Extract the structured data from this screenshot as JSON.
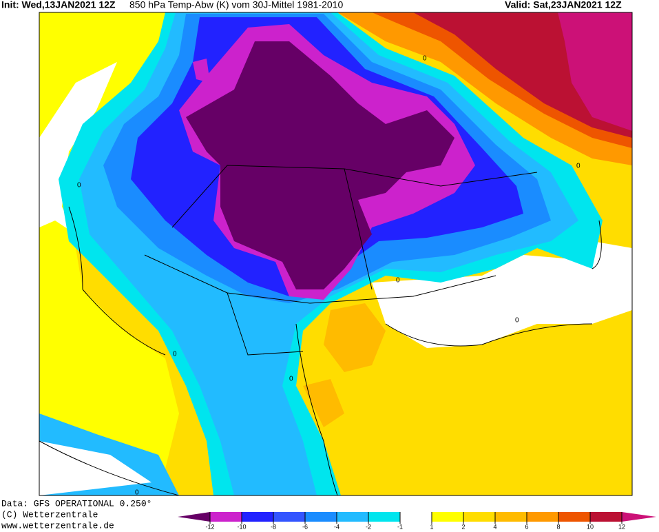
{
  "header": {
    "init": "Init: Wed,13JAN2021 12Z",
    "title": "850 hPa Temp-Abw (K) vom 30J-Mittel 1981-2010",
    "valid": "Valid: Sat,23JAN2021 12Z"
  },
  "map": {
    "contour_label": "0"
  },
  "footer": {
    "source": "Data: GFS OPERATIONAL 0.250°",
    "copyright": "(C) Wetterzentrale",
    "url": "www.wetterzentrale.de"
  },
  "colorbar": {
    "ticks": [
      -12,
      -10,
      -8,
      -6,
      -4,
      -2,
      -1,
      1,
      2,
      4,
      6,
      8,
      10,
      12
    ],
    "colors": [
      "#660066",
      "#cc22cc",
      "#2222ff",
      "#3355ff",
      "#1a8cff",
      "#22bbff",
      "#00e5ee",
      "#ffffff",
      "#ffff00",
      "#ffdd00",
      "#ffbb00",
      "#ff9900",
      "#ee5500",
      "#bb1133",
      "#cc1177"
    ]
  }
}
